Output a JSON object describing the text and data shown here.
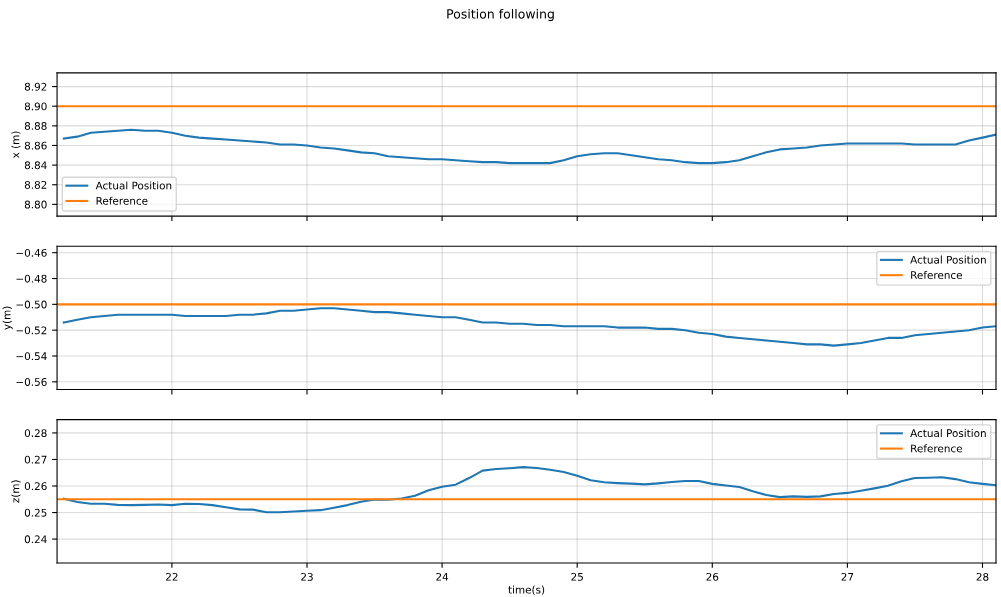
{
  "chart_data": [
    {
      "type": "line",
      "title": "Position following",
      "ylabel": "x (m)",
      "xlim": [
        21.15,
        28.1
      ],
      "xticks": [
        22,
        23,
        24,
        25,
        26,
        27,
        28
      ],
      "ylim": [
        8.788,
        8.934
      ],
      "yticks": [
        {
          "value": 8.8,
          "label": "8.80"
        },
        8.82,
        8.84,
        8.86,
        8.88,
        {
          "value": 8.9,
          "label": "8.90"
        },
        8.92
      ],
      "grid": true,
      "legend": "bottom left",
      "tick_labels": "y",
      "x": [
        21.2,
        21.3,
        21.4,
        21.5,
        21.6,
        21.7,
        21.8,
        21.9,
        22.0,
        22.1,
        22.2,
        22.3,
        22.4,
        22.5,
        22.6,
        22.7,
        22.8,
        22.9,
        23.0,
        23.1,
        23.2,
        23.3,
        23.4,
        23.5,
        23.6,
        23.7,
        23.8,
        23.9,
        24.0,
        24.1,
        24.2,
        24.3,
        24.4,
        24.5,
        24.6,
        24.7,
        24.8,
        24.9,
        25.0,
        25.1,
        25.2,
        25.3,
        25.4,
        25.5,
        25.6,
        25.7,
        25.8,
        25.9,
        26.0,
        26.1,
        26.2,
        26.3,
        26.4,
        26.5,
        26.6,
        26.7,
        26.8,
        26.9,
        27.0,
        27.1,
        27.2,
        27.3,
        27.4,
        27.5,
        27.6,
        27.7,
        27.8,
        27.9,
        28.0,
        28.1
      ],
      "series": [
        {
          "name": "Actual Position",
          "color": "#1f77b4",
          "values": [
            8.867,
            8.869,
            8.873,
            8.874,
            8.875,
            8.876,
            8.875,
            8.875,
            8.873,
            8.87,
            8.868,
            8.867,
            8.866,
            8.865,
            8.864,
            8.863,
            8.861,
            8.861,
            8.86,
            8.858,
            8.857,
            8.855,
            8.853,
            8.852,
            8.849,
            8.848,
            8.847,
            8.846,
            8.846,
            8.845,
            8.844,
            8.843,
            8.843,
            8.842,
            8.842,
            8.842,
            8.842,
            8.845,
            8.849,
            8.851,
            8.852,
            8.852,
            8.85,
            8.848,
            8.846,
            8.845,
            8.843,
            8.842,
            8.842,
            8.843,
            8.845,
            8.849,
            8.853,
            8.856,
            8.857,
            8.858,
            8.86,
            8.861,
            8.862,
            8.862,
            8.862,
            8.862,
            8.862,
            8.861,
            8.861,
            8.861,
            8.861,
            8.865,
            8.868,
            8.871
          ]
        }
      ],
      "ref_lines": [
        {
          "axis": "y",
          "value": 8.9,
          "label": "Reference",
          "color": "#ff7f0e"
        }
      ]
    },
    {
      "type": "line",
      "ylabel": "y(m)",
      "xlim": [
        21.15,
        28.1
      ],
      "xticks": [
        22,
        23,
        24,
        25,
        26,
        27,
        28
      ],
      "ylim": [
        -0.566,
        -0.455
      ],
      "yticks": [
        {
          "value": -0.56,
          "label": "−0.56"
        },
        {
          "value": -0.54,
          "label": "−0.54"
        },
        {
          "value": -0.52,
          "label": "−0.52"
        },
        {
          "value": -0.5,
          "label": "−0.50"
        },
        {
          "value": -0.48,
          "label": "−0.48"
        },
        {
          "value": -0.46,
          "label": "−0.46"
        }
      ],
      "grid": true,
      "legend": "top right",
      "tick_labels": "y",
      "x": [
        21.2,
        21.3,
        21.4,
        21.5,
        21.6,
        21.7,
        21.8,
        21.9,
        22.0,
        22.1,
        22.2,
        22.3,
        22.4,
        22.5,
        22.6,
        22.7,
        22.8,
        22.9,
        23.0,
        23.1,
        23.2,
        23.3,
        23.4,
        23.5,
        23.6,
        23.7,
        23.8,
        23.9,
        24.0,
        24.1,
        24.2,
        24.3,
        24.4,
        24.5,
        24.6,
        24.7,
        24.8,
        24.9,
        25.0,
        25.1,
        25.2,
        25.3,
        25.4,
        25.5,
        25.6,
        25.7,
        25.8,
        25.9,
        26.0,
        26.1,
        26.2,
        26.3,
        26.4,
        26.5,
        26.6,
        26.7,
        26.8,
        26.9,
        27.0,
        27.1,
        27.2,
        27.3,
        27.4,
        27.5,
        27.6,
        27.7,
        27.8,
        27.9,
        28.0,
        28.1
      ],
      "series": [
        {
          "name": "Actual Position",
          "color": "#1f77b4",
          "values": [
            -0.514,
            -0.512,
            -0.51,
            -0.509,
            -0.508,
            -0.508,
            -0.508,
            -0.508,
            -0.508,
            -0.509,
            -0.509,
            -0.509,
            -0.509,
            -0.508,
            -0.508,
            -0.507,
            -0.505,
            -0.505,
            -0.504,
            -0.503,
            -0.503,
            -0.504,
            -0.505,
            -0.506,
            -0.506,
            -0.507,
            -0.508,
            -0.509,
            -0.51,
            -0.51,
            -0.512,
            -0.514,
            -0.514,
            -0.515,
            -0.515,
            -0.516,
            -0.516,
            -0.517,
            -0.517,
            -0.517,
            -0.517,
            -0.518,
            -0.518,
            -0.518,
            -0.519,
            -0.519,
            -0.52,
            -0.522,
            -0.523,
            -0.525,
            -0.526,
            -0.527,
            -0.528,
            -0.529,
            -0.53,
            -0.531,
            -0.531,
            -0.532,
            -0.531,
            -0.53,
            -0.528,
            -0.526,
            -0.526,
            -0.524,
            -0.523,
            -0.522,
            -0.521,
            -0.52,
            -0.518,
            -0.517
          ]
        }
      ],
      "ref_lines": [
        {
          "axis": "y",
          "value": -0.5,
          "label": "Reference",
          "color": "#ff7f0e"
        }
      ]
    },
    {
      "type": "line",
      "ylabel": "z(m)",
      "xlabel": "time(s)",
      "xlim": [
        21.15,
        28.1
      ],
      "xticks": [
        22,
        23,
        24,
        25,
        26,
        27,
        28
      ],
      "ylim": [
        0.231,
        0.285
      ],
      "yticks": [
        0.24,
        0.25,
        0.26,
        0.27,
        0.28
      ],
      "grid": true,
      "legend": "top right",
      "x": [
        21.2,
        21.3,
        21.4,
        21.5,
        21.6,
        21.7,
        21.8,
        21.9,
        22.0,
        22.1,
        22.2,
        22.3,
        22.4,
        22.5,
        22.6,
        22.7,
        22.8,
        22.9,
        23.0,
        23.1,
        23.2,
        23.3,
        23.4,
        23.5,
        23.6,
        23.7,
        23.8,
        23.9,
        24.0,
        24.1,
        24.2,
        24.3,
        24.4,
        24.5,
        24.6,
        24.7,
        24.8,
        24.9,
        25.0,
        25.1,
        25.2,
        25.3,
        25.4,
        25.5,
        25.6,
        25.7,
        25.8,
        25.9,
        26.0,
        26.1,
        26.2,
        26.3,
        26.4,
        26.5,
        26.6,
        26.7,
        26.8,
        26.9,
        27.0,
        27.1,
        27.2,
        27.3,
        27.4,
        27.5,
        27.6,
        27.7,
        27.8,
        27.9,
        28.0,
        28.1
      ],
      "series": [
        {
          "name": "Actual Position",
          "color": "#1f77b4",
          "values": [
            0.2552,
            0.254,
            0.2533,
            0.2533,
            0.2529,
            0.2528,
            0.2529,
            0.253,
            0.2528,
            0.2533,
            0.2532,
            0.2528,
            0.252,
            0.2512,
            0.2511,
            0.2501,
            0.2501,
            0.2504,
            0.2507,
            0.2509,
            0.2518,
            0.2528,
            0.2541,
            0.2549,
            0.2548,
            0.2553,
            0.2563,
            0.2584,
            0.2597,
            0.2605,
            0.263,
            0.2658,
            0.2664,
            0.2667,
            0.2671,
            0.2668,
            0.2661,
            0.2653,
            0.2639,
            0.2622,
            0.2614,
            0.2611,
            0.2609,
            0.2606,
            0.261,
            0.2615,
            0.2619,
            0.2619,
            0.2608,
            0.2602,
            0.2596,
            0.258,
            0.2566,
            0.2558,
            0.2561,
            0.2559,
            0.2561,
            0.257,
            0.2574,
            0.2582,
            0.2591,
            0.2601,
            0.2618,
            0.263,
            0.2631,
            0.2633,
            0.2626,
            0.2614,
            0.2608,
            0.2603
          ]
        }
      ],
      "ref_lines": [
        {
          "axis": "y",
          "value": 0.255,
          "label": "Reference",
          "color": "#ff7f0e"
        }
      ]
    }
  ]
}
